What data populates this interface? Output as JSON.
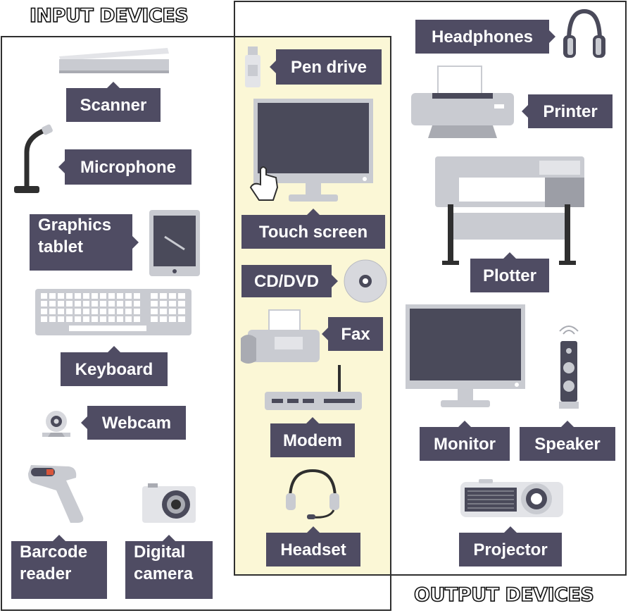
{
  "headings": {
    "input": "INPUT DEVICES",
    "output": "OUTPUT DEVICES"
  },
  "input_devices": {
    "scanner": "Scanner",
    "microphone": "Microphone",
    "graphics_tablet": [
      "Graphics",
      "tablet"
    ],
    "keyboard": "Keyboard",
    "webcam": "Webcam",
    "barcode_reader": [
      "Barcode",
      "reader"
    ],
    "digital_camera": [
      "Digital",
      "camera"
    ]
  },
  "both_devices": {
    "pen_drive": "Pen drive",
    "touch_screen": "Touch screen",
    "cd_dvd": "CD/DVD",
    "fax": "Fax",
    "modem": "Modem",
    "headset": "Headset"
  },
  "output_devices": {
    "headphones": "Headphones",
    "printer": "Printer",
    "plotter": "Plotter",
    "monitor": "Monitor",
    "speaker": "Speaker",
    "projector": "Projector"
  },
  "colors": {
    "label_bg": "#4f4c63",
    "device_gray": "#c9cbd1",
    "device_dark": "#4a4a5a",
    "middle_fill": "#fbf7d6",
    "frame": "#2f2f2f"
  }
}
